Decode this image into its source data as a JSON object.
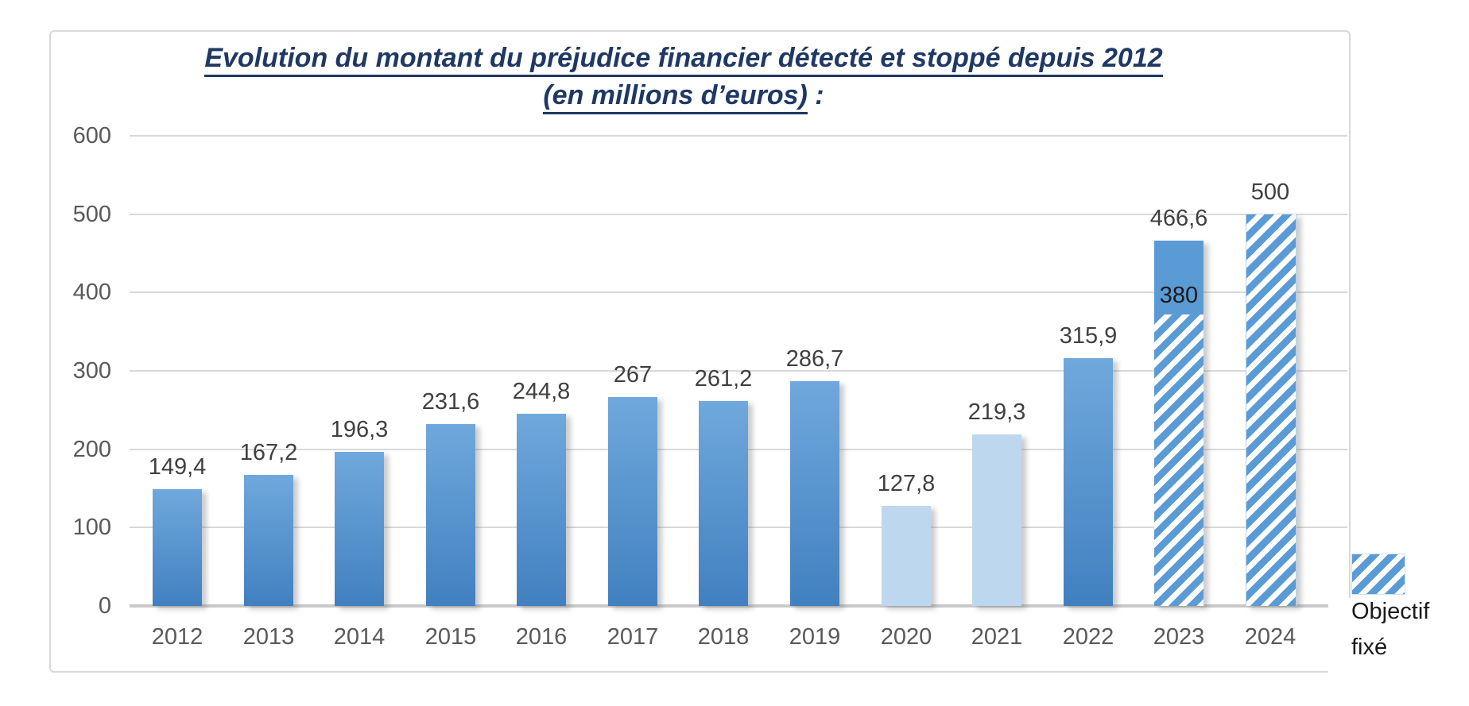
{
  "title": {
    "line1": "Evolution du montant du préjudice financier détecté et stoppé depuis 2012",
    "line2_underlined": "(en millions d’euros)",
    "line2_suffix": " :"
  },
  "legend": {
    "line1": "Objectif",
    "line2": "fixé"
  },
  "colors": {
    "title_text": "#1f3864",
    "axis_text": "#595959",
    "label_text": "#404040",
    "gridline": "#d9d9d9",
    "baseline": "#c9c9c9",
    "bar_gradient_top": "#6fa8dc",
    "bar_gradient_bottom": "#4180c0",
    "bar_light": "#bdd7ee",
    "bar_solid": "#5b9bd5",
    "hatch_stripe": "#5b9bd5"
  },
  "chart_data": {
    "type": "bar",
    "title": "Evolution du montant du préjudice financier détecté et stoppé depuis 2012 (en millions d’euros) :",
    "categories": [
      "2012",
      "2013",
      "2014",
      "2015",
      "2016",
      "2017",
      "2018",
      "2019",
      "2020",
      "2021",
      "2022",
      "2023",
      "2024"
    ],
    "series": [
      {
        "name": "",
        "values": [
          149.4,
          167.2,
          196.3,
          231.6,
          244.8,
          267,
          261.2,
          286.7,
          127.8,
          219.3,
          315.9,
          466.6,
          null
        ]
      },
      {
        "name": "Objectif fixé",
        "values": [
          null,
          null,
          null,
          null,
          null,
          null,
          null,
          null,
          null,
          null,
          null,
          380,
          500
        ]
      }
    ],
    "ylim": [
      0,
      600
    ],
    "y_ticks": [
      0,
      100,
      200,
      300,
      400,
      500,
      600
    ],
    "grid": true,
    "legend_position": "outside-right-bottom",
    "bars": [
      {
        "year": "2012",
        "value": 149.4,
        "label": "149,4",
        "style": "gradient"
      },
      {
        "year": "2013",
        "value": 167.2,
        "label": "167,2",
        "style": "gradient"
      },
      {
        "year": "2014",
        "value": 196.3,
        "label": "196,3",
        "style": "gradient"
      },
      {
        "year": "2015",
        "value": 231.6,
        "label": "231,6",
        "style": "gradient"
      },
      {
        "year": "2016",
        "value": 244.8,
        "label": "244,8",
        "style": "gradient"
      },
      {
        "year": "2017",
        "value": 267,
        "label": "267",
        "style": "gradient"
      },
      {
        "year": "2018",
        "value": 261.2,
        "label": "261,2",
        "style": "gradient"
      },
      {
        "year": "2019",
        "value": 286.7,
        "label": "286,7",
        "style": "gradient"
      },
      {
        "year": "2020",
        "value": 127.8,
        "label": "127,8",
        "style": "light"
      },
      {
        "year": "2021",
        "value": 219.3,
        "label": "219,3",
        "style": "light"
      },
      {
        "year": "2022",
        "value": 315.9,
        "label": "315,9",
        "style": "gradient"
      },
      {
        "year": "2023",
        "value": 466.6,
        "label": "466,6",
        "style": "stacked",
        "objective": 380,
        "objective_label": "380"
      },
      {
        "year": "2024",
        "value": 500,
        "label": "500",
        "style": "hatched"
      }
    ]
  }
}
